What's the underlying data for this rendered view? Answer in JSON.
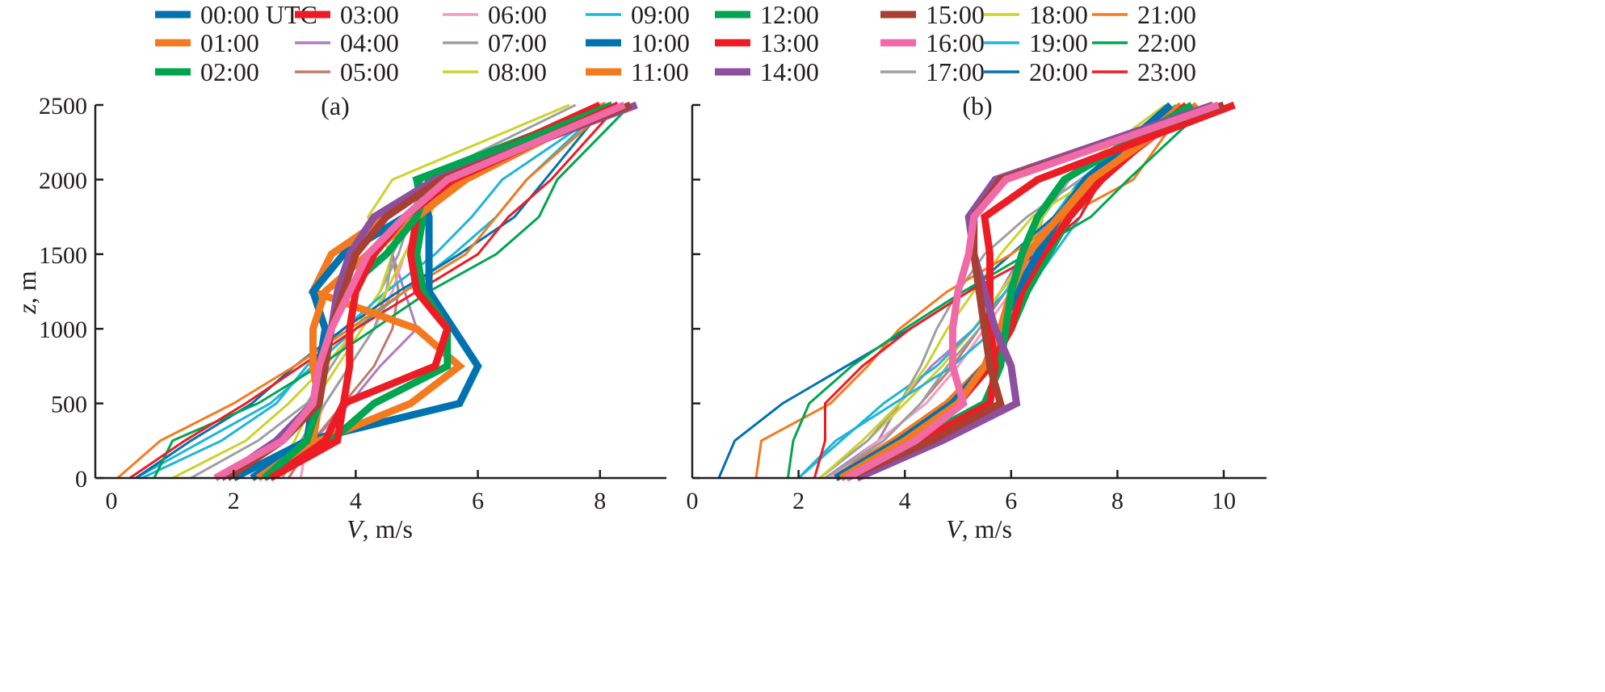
{
  "chart_data": {
    "type": "line",
    "legend": {
      "placement": "top",
      "columns": 8,
      "entries": [
        {
          "label": "00:00 UTC",
          "color": "#0072b0",
          "weight": "thick"
        },
        {
          "label": "01:00",
          "color": "#f47a20",
          "weight": "thick"
        },
        {
          "label": "02:00",
          "color": "#00a550",
          "weight": "thick"
        },
        {
          "label": "03:00",
          "color": "#ed1c24",
          "weight": "thick"
        },
        {
          "label": "04:00",
          "color": "#b07cc0",
          "weight": "thin"
        },
        {
          "label": "05:00",
          "color": "#c07a6a",
          "weight": "thin"
        },
        {
          "label": "06:00",
          "color": "#f49ac1",
          "weight": "thin"
        },
        {
          "label": "07:00",
          "color": "#9d9fa2",
          "weight": "thin"
        },
        {
          "label": "08:00",
          "color": "#cbd32b",
          "weight": "thin"
        },
        {
          "label": "09:00",
          "color": "#1fb5d6",
          "weight": "thin"
        },
        {
          "label": "10:00",
          "color": "#0072b0",
          "weight": "thick"
        },
        {
          "label": "11:00",
          "color": "#f47a20",
          "weight": "thick"
        },
        {
          "label": "12:00",
          "color": "#00a550",
          "weight": "thick"
        },
        {
          "label": "13:00",
          "color": "#ed1c24",
          "weight": "thick"
        },
        {
          "label": "14:00",
          "color": "#8e4f9e",
          "weight": "thick"
        },
        {
          "label": "15:00",
          "color": "#a83f31",
          "weight": "thick"
        },
        {
          "label": "16:00",
          "color": "#f06aa8",
          "weight": "thick"
        },
        {
          "label": "17:00",
          "color": "#9d9fa2",
          "weight": "thin"
        },
        {
          "label": "18:00",
          "color": "#cbd32b",
          "weight": "thin"
        },
        {
          "label": "19:00",
          "color": "#1fb5d6",
          "weight": "thin"
        },
        {
          "label": "20:00",
          "color": "#0072b0",
          "weight": "thin"
        },
        {
          "label": "21:00",
          "color": "#f47a20",
          "weight": "thin"
        },
        {
          "label": "22:00",
          "color": "#00a550",
          "weight": "thin"
        },
        {
          "label": "23:00",
          "color": "#ed1c24",
          "weight": "thin"
        }
      ]
    },
    "panels": [
      {
        "label": "(a)",
        "xlabel_italic": "V",
        "xlabel_rest": ", m/s",
        "ylabel_italic": "z",
        "ylabel_rest": ", m",
        "xlim": [
          0,
          9.1
        ],
        "ylim": [
          0,
          2500
        ],
        "xticks": [
          0,
          2,
          4,
          6,
          8
        ],
        "yticks": [
          0,
          500,
          1000,
          1500,
          2000,
          2500
        ],
        "z": [
          0,
          250,
          500,
          750,
          1000,
          1250,
          1500,
          1750,
          2000,
          2500
        ],
        "series": [
          {
            "name": "00:00 UTC",
            "values": [
              2.0,
              3.2,
              5.7,
              6.0,
              5.6,
              5.2,
              5.2,
              5.2,
              5.0,
              8.2
            ]
          },
          {
            "name": "01:00",
            "values": [
              2.3,
              3.4,
              4.9,
              5.7,
              5.0,
              3.3,
              3.6,
              4.5,
              5.3,
              8.1
            ]
          },
          {
            "name": "02:00",
            "values": [
              2.5,
              3.6,
              4.3,
              5.5,
              5.5,
              5.1,
              5.0,
              5.1,
              5.0,
              8.2
            ]
          },
          {
            "name": "03:00",
            "values": [
              2.6,
              3.5,
              3.8,
              5.3,
              5.5,
              5.0,
              4.9,
              5.0,
              5.3,
              8.0
            ]
          },
          {
            "name": "04:00",
            "values": [
              2.9,
              3.3,
              3.9,
              4.4,
              5.0,
              4.8,
              4.6,
              4.9,
              5.2,
              8.3
            ]
          },
          {
            "name": "05:00",
            "values": [
              2.9,
              3.3,
              3.8,
              4.3,
              4.6,
              4.7,
              4.6,
              4.9,
              5.3,
              8.3
            ]
          },
          {
            "name": "06:00",
            "values": [
              3.1,
              3.2,
              3.5,
              3.9,
              4.3,
              4.6,
              4.8,
              5.1,
              5.4,
              8.4
            ]
          },
          {
            "name": "07:00",
            "values": [
              1.3,
              2.4,
              3.2,
              3.6,
              4.0,
              4.4,
              4.7,
              4.9,
              5.1,
              7.6
            ]
          },
          {
            "name": "08:00",
            "values": [
              1.0,
              2.2,
              2.9,
              3.5,
              4.0,
              4.4,
              4.6,
              4.2,
              4.6,
              7.5
            ]
          },
          {
            "name": "09:00",
            "values": [
              0.5,
              1.8,
              2.7,
              3.2,
              3.8,
              4.5,
              5.3,
              5.9,
              6.4,
              8.2
            ]
          },
          {
            "name": "10:00",
            "values": [
              2.3,
              3.2,
              3.3,
              3.4,
              3.5,
              3.3,
              3.8,
              4.8,
              5.5,
              8.3
            ]
          },
          {
            "name": "11:00",
            "values": [
              2.4,
              3.3,
              3.4,
              3.3,
              3.3,
              3.5,
              4.2,
              5.0,
              5.8,
              8.2
            ]
          },
          {
            "name": "12:00",
            "values": [
              2.5,
              3.2,
              3.4,
              3.5,
              3.6,
              3.8,
              4.5,
              5.0,
              5.2,
              8.2
            ]
          },
          {
            "name": "13:00",
            "values": [
              2.6,
              3.7,
              3.8,
              3.9,
              3.9,
              4.0,
              4.3,
              4.8,
              5.6,
              8.3
            ]
          },
          {
            "name": "14:00",
            "values": [
              1.8,
              2.7,
              3.3,
              3.4,
              3.6,
              3.7,
              3.9,
              4.3,
              5.3,
              8.6
            ]
          },
          {
            "name": "15:00",
            "values": [
              1.9,
              2.8,
              3.4,
              3.5,
              3.6,
              3.8,
              4.0,
              4.5,
              5.4,
              8.5
            ]
          },
          {
            "name": "16:00",
            "values": [
              1.7,
              2.8,
              3.3,
              3.4,
              3.6,
              3.9,
              4.2,
              4.8,
              5.5,
              8.4
            ]
          },
          {
            "name": "17:00",
            "values": [
              2.8,
              3.1,
              3.5,
              3.9,
              4.3,
              4.5,
              4.6,
              4.9,
              5.3,
              8.1
            ]
          },
          {
            "name": "18:00",
            "values": [
              2.6,
              3.0,
              3.3,
              3.7,
              4.1,
              4.5,
              4.8,
              5.2,
              5.5,
              8.2
            ]
          },
          {
            "name": "19:00",
            "values": [
              0.4,
              1.5,
              2.6,
              3.3,
              4.0,
              4.8,
              5.6,
              6.3,
              6.8,
              8.1
            ]
          },
          {
            "name": "20:00",
            "values": [
              0.4,
              1.3,
              2.3,
              3.0,
              3.8,
              4.7,
              5.7,
              6.6,
              7.1,
              8.1
            ]
          },
          {
            "name": "21:00",
            "values": [
              0.1,
              0.8,
              2.0,
              3.0,
              3.9,
              4.8,
              5.8,
              6.3,
              6.8,
              8.2
            ]
          },
          {
            "name": "22:00",
            "values": [
              0.7,
              1.0,
              2.4,
              3.4,
              4.3,
              5.2,
              6.3,
              7.0,
              7.3,
              8.5
            ]
          },
          {
            "name": "23:00",
            "values": [
              0.3,
              1.2,
              2.2,
              3.1,
              4.0,
              5.0,
              6.0,
              6.5,
              7.2,
              8.3
            ]
          }
        ]
      },
      {
        "label": "(b)",
        "xlabel_italic": "V",
        "xlabel_rest": ", m/s",
        "ylabel_italic": "",
        "ylabel_rest": "",
        "xlim": [
          0,
          10.8
        ],
        "ylim": [
          0,
          2500
        ],
        "xticks": [
          0,
          2,
          4,
          6,
          8,
          10
        ],
        "yticks": [
          0,
          500,
          1000,
          1500,
          2000,
          2500
        ],
        "z": [
          0,
          250,
          500,
          750,
          1000,
          1250,
          1500,
          1750,
          2000,
          2500
        ],
        "series": [
          {
            "name": "00:00 UTC",
            "values": [
              2.7,
              4.0,
              5.0,
              5.6,
              6.0,
              6.3,
              6.6,
              7.0,
              7.5,
              9.0
            ]
          },
          {
            "name": "01:00",
            "values": [
              2.7,
              3.8,
              4.8,
              5.5,
              6.0,
              6.3,
              6.6,
              7.0,
              7.6,
              9.2
            ]
          },
          {
            "name": "02:00",
            "values": [
              2.8,
              3.9,
              4.9,
              5.6,
              6.0,
              6.3,
              6.7,
              7.1,
              7.7,
              9.3
            ]
          },
          {
            "name": "03:00",
            "values": [
              2.8,
              4.0,
              5.0,
              5.6,
              6.0,
              6.2,
              6.6,
              7.1,
              7.7,
              9.3
            ]
          },
          {
            "name": "04:00",
            "values": [
              2.5,
              3.5,
              3.9,
              4.5,
              5.3,
              5.8,
              6.2,
              6.8,
              7.5,
              9.2
            ]
          },
          {
            "name": "05:00",
            "values": [
              2.6,
              3.6,
              4.3,
              4.9,
              5.4,
              5.9,
              6.3,
              6.8,
              7.4,
              9.1
            ]
          },
          {
            "name": "06:00",
            "values": [
              2.6,
              3.5,
              4.4,
              5.0,
              5.5,
              6.0,
              6.4,
              6.8,
              7.4,
              9.2
            ]
          },
          {
            "name": "07:00",
            "values": [
              2.5,
              3.6,
              4.3,
              4.8,
              5.4,
              5.8,
              6.4,
              6.6,
              7.1,
              9.0
            ]
          },
          {
            "name": "08:00",
            "values": [
              2.4,
              3.3,
              4.0,
              4.7,
              5.3,
              5.8,
              6.3,
              6.6,
              7.0,
              8.9
            ]
          },
          {
            "name": "09:00",
            "values": [
              2.0,
              2.8,
              3.6,
              4.6,
              5.3,
              5.9,
              6.4,
              6.8,
              7.3,
              9.1
            ]
          },
          {
            "name": "10:00",
            "values": [
              2.7,
              3.9,
              4.9,
              5.5,
              5.8,
              6.1,
              6.5,
              6.9,
              7.4,
              9.0
            ]
          },
          {
            "name": "11:00",
            "values": [
              2.8,
              4.0,
              5.0,
              5.5,
              5.8,
              6.0,
              6.3,
              6.9,
              7.5,
              9.5
            ]
          },
          {
            "name": "12:00",
            "values": [
              2.9,
              4.2,
              5.5,
              5.8,
              5.9,
              6.0,
              6.2,
              6.5,
              7.0,
              9.4
            ]
          },
          {
            "name": "13:00",
            "values": [
              2.9,
              4.3,
              5.6,
              5.7,
              5.6,
              5.6,
              5.6,
              5.5,
              6.5,
              10.2
            ]
          },
          {
            "name": "14:00",
            "values": [
              3.1,
              4.7,
              6.1,
              6.0,
              5.7,
              5.5,
              5.3,
              5.2,
              5.7,
              9.8
            ]
          },
          {
            "name": "15:00",
            "values": [
              2.9,
              4.5,
              5.8,
              5.6,
              5.5,
              5.4,
              5.3,
              5.3,
              5.8,
              10.0
            ]
          },
          {
            "name": "16:00",
            "values": [
              2.9,
              4.2,
              5.1,
              4.9,
              4.9,
              5.0,
              5.2,
              5.3,
              5.9,
              9.9
            ]
          },
          {
            "name": "17:00",
            "values": [
              2.4,
              3.3,
              3.9,
              4.3,
              4.6,
              5.0,
              5.5,
              6.3,
              7.3,
              9.2
            ]
          },
          {
            "name": "18:00",
            "values": [
              2.4,
              3.2,
              3.9,
              4.4,
              4.8,
              5.3,
              5.8,
              6.4,
              7.5,
              9.3
            ]
          },
          {
            "name": "19:00",
            "values": [
              2.0,
              2.7,
              3.8,
              4.9,
              5.7,
              6.3,
              6.8,
              7.3,
              7.6,
              9.4
            ]
          },
          {
            "name": "20:00",
            "values": [
              0.5,
              0.8,
              1.7,
              2.9,
              4.1,
              5.2,
              6.0,
              6.8,
              7.5,
              9.3
            ]
          },
          {
            "name": "21:00",
            "values": [
              1.2,
              1.3,
              2.6,
              3.3,
              3.9,
              4.8,
              6.0,
              7.0,
              8.3,
              9.3
            ]
          },
          {
            "name": "22:00",
            "values": [
              1.8,
              1.9,
              2.2,
              3.0,
              4.0,
              5.1,
              6.3,
              7.5,
              8.2,
              9.7
            ]
          },
          {
            "name": "23:00",
            "values": [
              2.3,
              2.5,
              2.5,
              3.2,
              4.1,
              5.2,
              6.5,
              7.3,
              7.7,
              9.5
            ]
          }
        ]
      }
    ]
  }
}
